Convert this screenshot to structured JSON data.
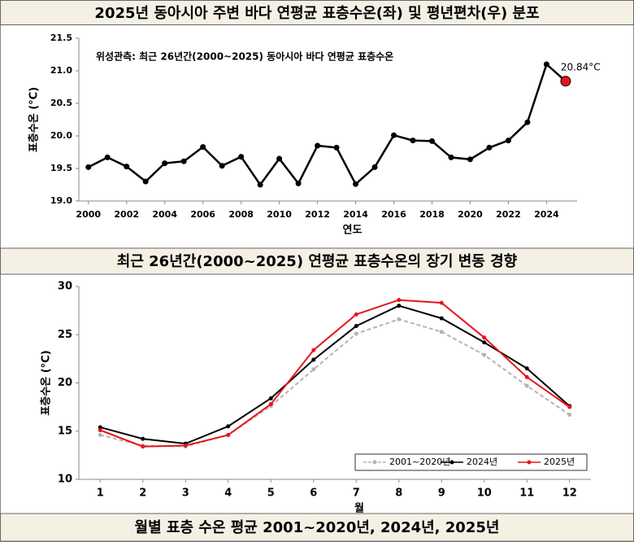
{
  "header": {
    "title": "2025년 동아시아 주변 바다 연평균 표층수온(좌) 및 평년편차(우) 분포"
  },
  "chart_data": [
    {
      "type": "line",
      "title": "최근 26년간(2000~2025) 연평균 표층수온의 장기 변동 경향",
      "subtitle": "위성관측: 최근 26년간(2000~2025) 동아시아 바다 연평균 표층수온",
      "x_label": "연도",
      "y_label": "표층수온 (°C)",
      "x": [
        2000,
        2001,
        2002,
        2003,
        2004,
        2005,
        2006,
        2007,
        2008,
        2009,
        2010,
        2011,
        2012,
        2013,
        2014,
        2015,
        2016,
        2017,
        2018,
        2019,
        2020,
        2021,
        2022,
        2023,
        2024,
        2025
      ],
      "values": [
        19.52,
        19.67,
        19.53,
        19.3,
        19.58,
        19.61,
        19.83,
        19.54,
        19.68,
        19.25,
        19.65,
        19.27,
        19.85,
        19.82,
        19.26,
        19.52,
        20.01,
        19.93,
        19.92,
        19.67,
        19.64,
        19.82,
        19.93,
        20.21,
        21.1,
        20.84
      ],
      "value_labels": [
        null,
        null,
        null,
        null,
        null,
        null,
        null,
        null,
        null,
        null,
        null,
        null,
        null,
        null,
        null,
        null,
        null,
        null,
        null,
        null,
        null,
        null,
        null,
        null,
        null,
        "20.84°C"
      ],
      "color": "#000000",
      "highlight_color": "#e8141c",
      "xlim": [
        1999.5,
        2025.6
      ],
      "xticks": [
        2000,
        2002,
        2004,
        2006,
        2008,
        2010,
        2012,
        2014,
        2016,
        2018,
        2020,
        2022,
        2024
      ],
      "ylim": [
        19,
        21.5
      ],
      "yticks": [
        {
          "value": 19,
          "label": "19.0"
        },
        19.5,
        {
          "value": 20,
          "label": "20.0"
        },
        20.5,
        {
          "value": 21,
          "label": "21.0"
        },
        21.5
      ],
      "grid": false
    },
    {
      "type": "line",
      "title": "월별 표층 수온 평균 2001~2020년, 2024년, 2025년",
      "x_label": "월",
      "y_label": "표층수온 (°C)",
      "x": [
        1,
        2,
        3,
        4,
        5,
        6,
        7,
        8,
        9,
        10,
        11,
        12
      ],
      "series": [
        {
          "name": "2001~2020년",
          "color": "#b4b4b4",
          "dashed": true,
          "values": [
            14.6,
            13.5,
            13.4,
            14.6,
            17.6,
            21.4,
            25.1,
            26.6,
            25.3,
            22.9,
            19.7,
            16.7
          ]
        },
        {
          "name": "2024년",
          "color": "#000000",
          "dashed": false,
          "values": [
            15.4,
            14.2,
            13.7,
            15.5,
            18.4,
            22.4,
            25.9,
            28.0,
            26.7,
            24.2,
            21.5,
            17.6
          ]
        },
        {
          "name": "2025년",
          "color": "#e8141c",
          "dashed": false,
          "values": [
            15.1,
            13.4,
            13.5,
            14.6,
            17.8,
            23.4,
            27.1,
            28.6,
            28.3,
            24.7,
            20.6,
            17.5
          ]
        }
      ],
      "xlim": [
        0.5,
        12.5
      ],
      "xticks": [
        1,
        2,
        3,
        4,
        5,
        6,
        7,
        8,
        9,
        10,
        11,
        12
      ],
      "ylim": [
        10,
        30
      ],
      "yticks": [
        10,
        15,
        20,
        25,
        30
      ],
      "grid": false,
      "legend": "lower right"
    }
  ]
}
